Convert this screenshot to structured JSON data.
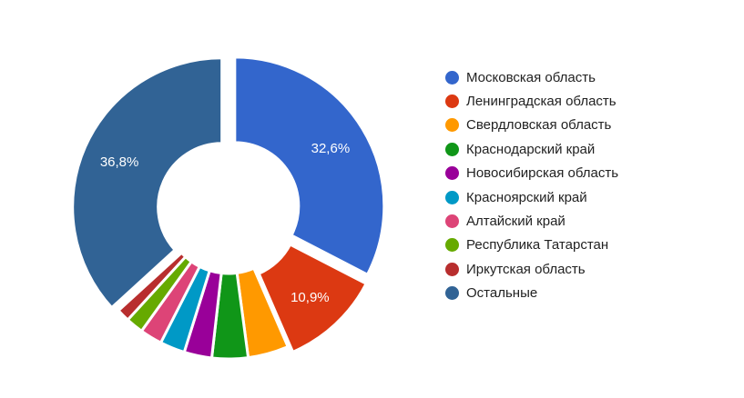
{
  "chart_data": {
    "type": "pie",
    "subtype": "donut",
    "title": "",
    "legend_position": "right",
    "categories": [
      "Московская область",
      "Ленинградская область",
      "Свердловская область",
      "Краснодарский край",
      "Новосибирская область",
      "Красноярский край",
      "Алтайский край",
      "Республика Татарстан",
      "Иркутская область",
      "Остальные"
    ],
    "values": [
      32.6,
      10.9,
      4.4,
      3.9,
      3.0,
      2.7,
      2.4,
      1.9,
      1.4,
      36.8
    ],
    "value_labels": [
      "32,6%",
      "10,9%",
      "",
      "",
      "",
      "",
      "",
      "",
      "",
      "36,8%"
    ],
    "colors": [
      "#3366cc",
      "#dc3912",
      "#ff9900",
      "#109618",
      "#990099",
      "#0099c6",
      "#dd4477",
      "#66aa00",
      "#b82e2e",
      "#316395"
    ],
    "exploded": [
      true,
      true,
      false,
      false,
      false,
      false,
      false,
      false,
      false,
      true
    ],
    "unit": "%"
  },
  "legend": {
    "items": [
      {
        "label": "Московская область",
        "color": "#3366cc"
      },
      {
        "label": "Ленинградская область",
        "color": "#dc3912"
      },
      {
        "label": "Свердловская область",
        "color": "#ff9900"
      },
      {
        "label": "Краснодарский край",
        "color": "#109618"
      },
      {
        "label": "Новосибирская область",
        "color": "#990099"
      },
      {
        "label": "Красноярский край",
        "color": "#0099c6"
      },
      {
        "label": "Алтайский край",
        "color": "#dd4477"
      },
      {
        "label": "Республика Татарстан",
        "color": "#66aa00"
      },
      {
        "label": "Иркутская область",
        "color": "#b82e2e"
      },
      {
        "label": "Остальные",
        "color": "#316395"
      }
    ]
  }
}
